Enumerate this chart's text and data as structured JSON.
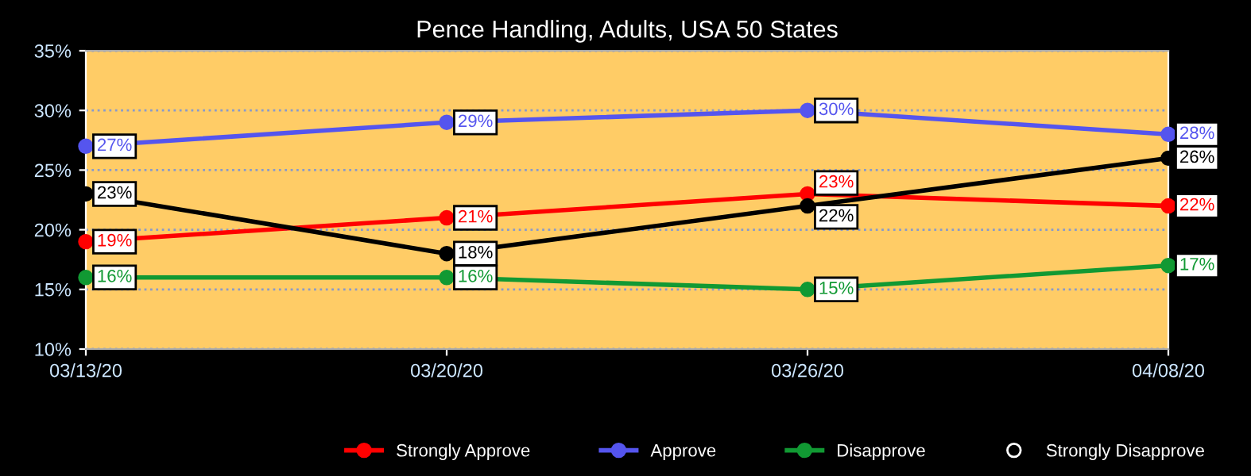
{
  "chart_data": {
    "type": "line",
    "title": "Pence Handling, Adults, USA 50 States",
    "categories": [
      "03/13/20",
      "03/20/20",
      "03/26/20",
      "04/08/20"
    ],
    "series": [
      {
        "name": "Strongly Approve",
        "color": "#ff0000",
        "values": [
          19,
          21,
          23,
          22
        ],
        "value_labels": [
          "19%",
          "21%",
          "23%",
          "22%"
        ]
      },
      {
        "name": "Approve",
        "color": "#5555ee",
        "values": [
          27,
          29,
          30,
          28
        ],
        "value_labels": [
          "27%",
          "29%",
          "30%",
          "28%"
        ]
      },
      {
        "name": "Disapprove",
        "color": "#119933",
        "values": [
          16,
          16,
          15,
          17
        ],
        "value_labels": [
          "16%",
          "16%",
          "15%",
          "17%"
        ]
      },
      {
        "name": "Strongly Disapprove",
        "color": "#000000",
        "values": [
          23,
          18,
          22,
          26
        ],
        "value_labels": [
          "23%",
          "18%",
          "22%",
          "26%"
        ]
      }
    ],
    "ylim": [
      10,
      35
    ],
    "yticks": [
      {
        "value": 10,
        "label": "10%"
      },
      {
        "value": 15,
        "label": "15%"
      },
      {
        "value": 20,
        "label": "20%"
      },
      {
        "value": 25,
        "label": "25%"
      },
      {
        "value": 30,
        "label": "30%"
      },
      {
        "value": 35,
        "label": "35%"
      }
    ],
    "grid": "y",
    "legend": "bottom",
    "marker": "circle",
    "line_style": "solid"
  }
}
